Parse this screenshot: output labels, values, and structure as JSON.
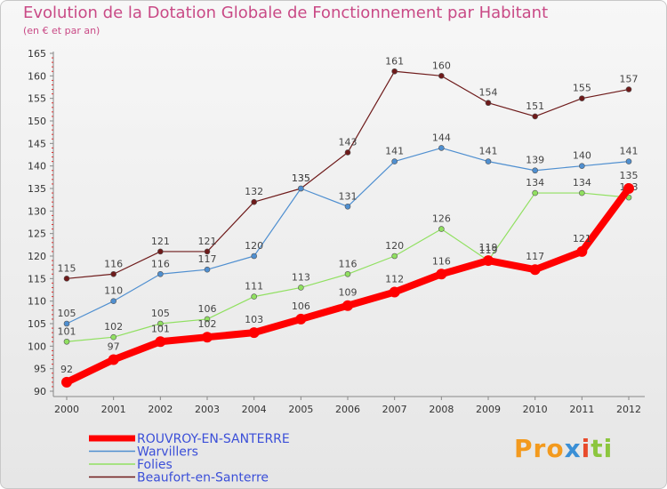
{
  "title": "Evolution de la Dotation Globale de Fonctionnement par Habitant",
  "subtitle": "(en € et par an)",
  "logo": [
    "Pro",
    "x",
    "i",
    "ti"
  ],
  "chart_data": {
    "type": "line",
    "x": [
      "2000",
      "2001",
      "2002",
      "2003",
      "2004",
      "2005",
      "2006",
      "2007",
      "2008",
      "2009",
      "2010",
      "2011",
      "2012"
    ],
    "ylim": [
      90,
      165
    ],
    "yticks": [
      90,
      95,
      100,
      105,
      110,
      115,
      120,
      125,
      130,
      135,
      140,
      145,
      150,
      155,
      160,
      165
    ],
    "grid": false,
    "legend": "bottom-left",
    "series": [
      {
        "name": "ROUVROY-EN-SANTERRE",
        "color": "#ff0000",
        "values": [
          92,
          97,
          101,
          102,
          103,
          106,
          109,
          112,
          116,
          119,
          117,
          121,
          135
        ]
      },
      {
        "name": "Warvillers",
        "color": "#4f8fd0",
        "values": [
          105,
          110,
          116,
          117,
          120,
          135,
          131,
          141,
          144,
          141,
          139,
          140,
          141
        ]
      },
      {
        "name": "Folies",
        "color": "#90e060",
        "values": [
          101,
          102,
          105,
          106,
          111,
          113,
          116,
          120,
          126,
          119,
          134,
          134,
          133
        ]
      },
      {
        "name": "Beaufort-en-Santerre",
        "color": "#6e1a1a",
        "values": [
          115,
          116,
          121,
          121,
          132,
          135,
          143,
          161,
          160,
          154,
          151,
          155,
          157
        ]
      }
    ]
  }
}
